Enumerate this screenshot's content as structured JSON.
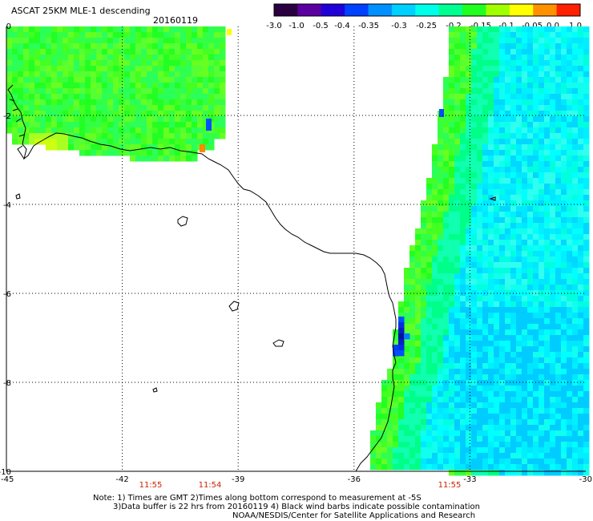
{
  "title": "ASCAT 25KM MLE-1 descending",
  "date": "20160119",
  "colorbar": {
    "tick_labels": [
      "-3.0",
      "-1.0",
      "-0.5",
      "-0.4",
      "-0.35",
      "-0.3",
      "-0.25",
      "-0.2",
      "-0.15",
      "-0.1",
      "-0.05",
      "0.0",
      "1.0"
    ],
    "colors": [
      "#2a0040",
      "#5a00a0",
      "#2000d8",
      "#0040ff",
      "#0090ff",
      "#00d0ff",
      "#00ffe8",
      "#00ff90",
      "#20ff20",
      "#a0ff00",
      "#ffff00",
      "#ff9000",
      "#ff2000"
    ]
  },
  "axes": {
    "lat_labels": [
      "0",
      "-2",
      "-4",
      "-6",
      "-8",
      "-10"
    ],
    "lon_labels": [
      "-45",
      "-42",
      "-39",
      "-36",
      "-33",
      "-30"
    ],
    "time_labels": [
      "11:55",
      "11:54",
      "11:55"
    ],
    "time_color": "#cc2200"
  },
  "notes": {
    "line1": "Note: 1) Times are GMT 2)Times along bottom correspond to measurement at -5S",
    "line2": "3)Data buffer is 22 hrs from 20160119 4) Black wind barbs indicate possible contamination",
    "line3": "NOAA/NESDIS/Center for Satellite Applications and Research"
  }
}
